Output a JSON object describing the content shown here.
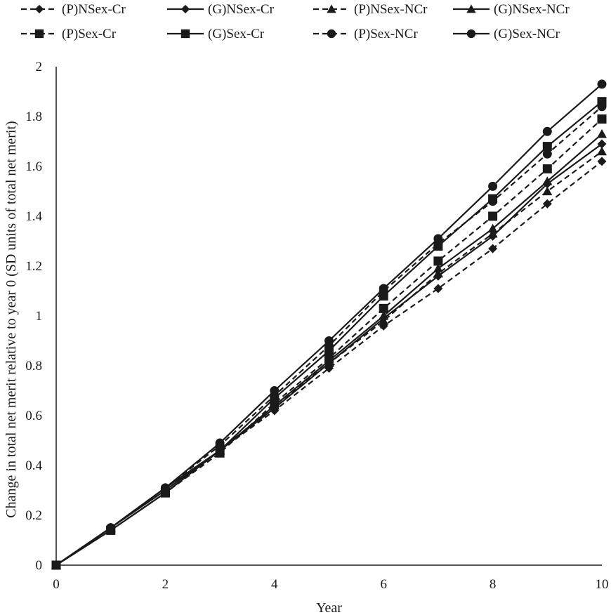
{
  "chart_data": {
    "type": "line",
    "title": "",
    "xlabel": "Year",
    "ylabel": "Change in total net merit relative to year 0 (SD units of total net merit)",
    "x": [
      0,
      1,
      2,
      3,
      4,
      5,
      6,
      7,
      8,
      9,
      10
    ],
    "xlim": [
      0,
      10
    ],
    "ylim": [
      0,
      2
    ],
    "x_ticks": [
      "0",
      "2",
      "4",
      "6",
      "8",
      "10"
    ],
    "y_ticks": [
      "0",
      "0.2",
      "0.4",
      "0.6",
      "0.8",
      "1",
      "1.2",
      "1.4",
      "1.6",
      "1.8",
      "2"
    ],
    "grid": false,
    "legend_position": "top",
    "series": [
      {
        "name": "(P)NSex-Cr",
        "marker": "diamond",
        "dashed": true,
        "values": [
          0,
          0.15,
          0.31,
          0.46,
          0.62,
          0.79,
          0.96,
          1.11,
          1.27,
          1.45,
          1.62
        ]
      },
      {
        "name": "(G)NSex-Cr",
        "marker": "diamond",
        "dashed": false,
        "values": [
          0,
          0.15,
          0.3,
          0.46,
          0.63,
          0.81,
          0.99,
          1.16,
          1.32,
          1.53,
          1.69
        ]
      },
      {
        "name": "(P)NSex-NCr",
        "marker": "triangle",
        "dashed": true,
        "values": [
          0,
          0.15,
          0.31,
          0.46,
          0.64,
          0.81,
          0.98,
          1.17,
          1.33,
          1.5,
          1.66
        ]
      },
      {
        "name": "(G)NSex-NCr",
        "marker": "triangle",
        "dashed": false,
        "values": [
          0,
          0.15,
          0.31,
          0.46,
          0.64,
          0.82,
          1.0,
          1.19,
          1.35,
          1.54,
          1.73
        ]
      },
      {
        "name": "(P)Sex-Cr",
        "marker": "square",
        "dashed": true,
        "values": [
          0,
          0.14,
          0.29,
          0.45,
          0.65,
          0.83,
          1.03,
          1.22,
          1.4,
          1.59,
          1.79
        ]
      },
      {
        "name": "(G)Sex-Cr",
        "marker": "square",
        "dashed": false,
        "values": [
          0,
          0.14,
          0.29,
          0.46,
          0.67,
          0.86,
          1.08,
          1.28,
          1.47,
          1.68,
          1.86
        ]
      },
      {
        "name": "(P)Sex-NCr",
        "marker": "circle",
        "dashed": true,
        "values": [
          0,
          0.15,
          0.31,
          0.48,
          0.68,
          0.88,
          1.1,
          1.29,
          1.46,
          1.65,
          1.84
        ]
      },
      {
        "name": "(G)Sex-NCr",
        "marker": "circle",
        "dashed": false,
        "values": [
          0,
          0.15,
          0.31,
          0.49,
          0.7,
          0.9,
          1.11,
          1.31,
          1.52,
          1.74,
          1.93
        ]
      }
    ],
    "colors": {
      "line": "#1a1a1a",
      "background": "#ffffff"
    }
  }
}
